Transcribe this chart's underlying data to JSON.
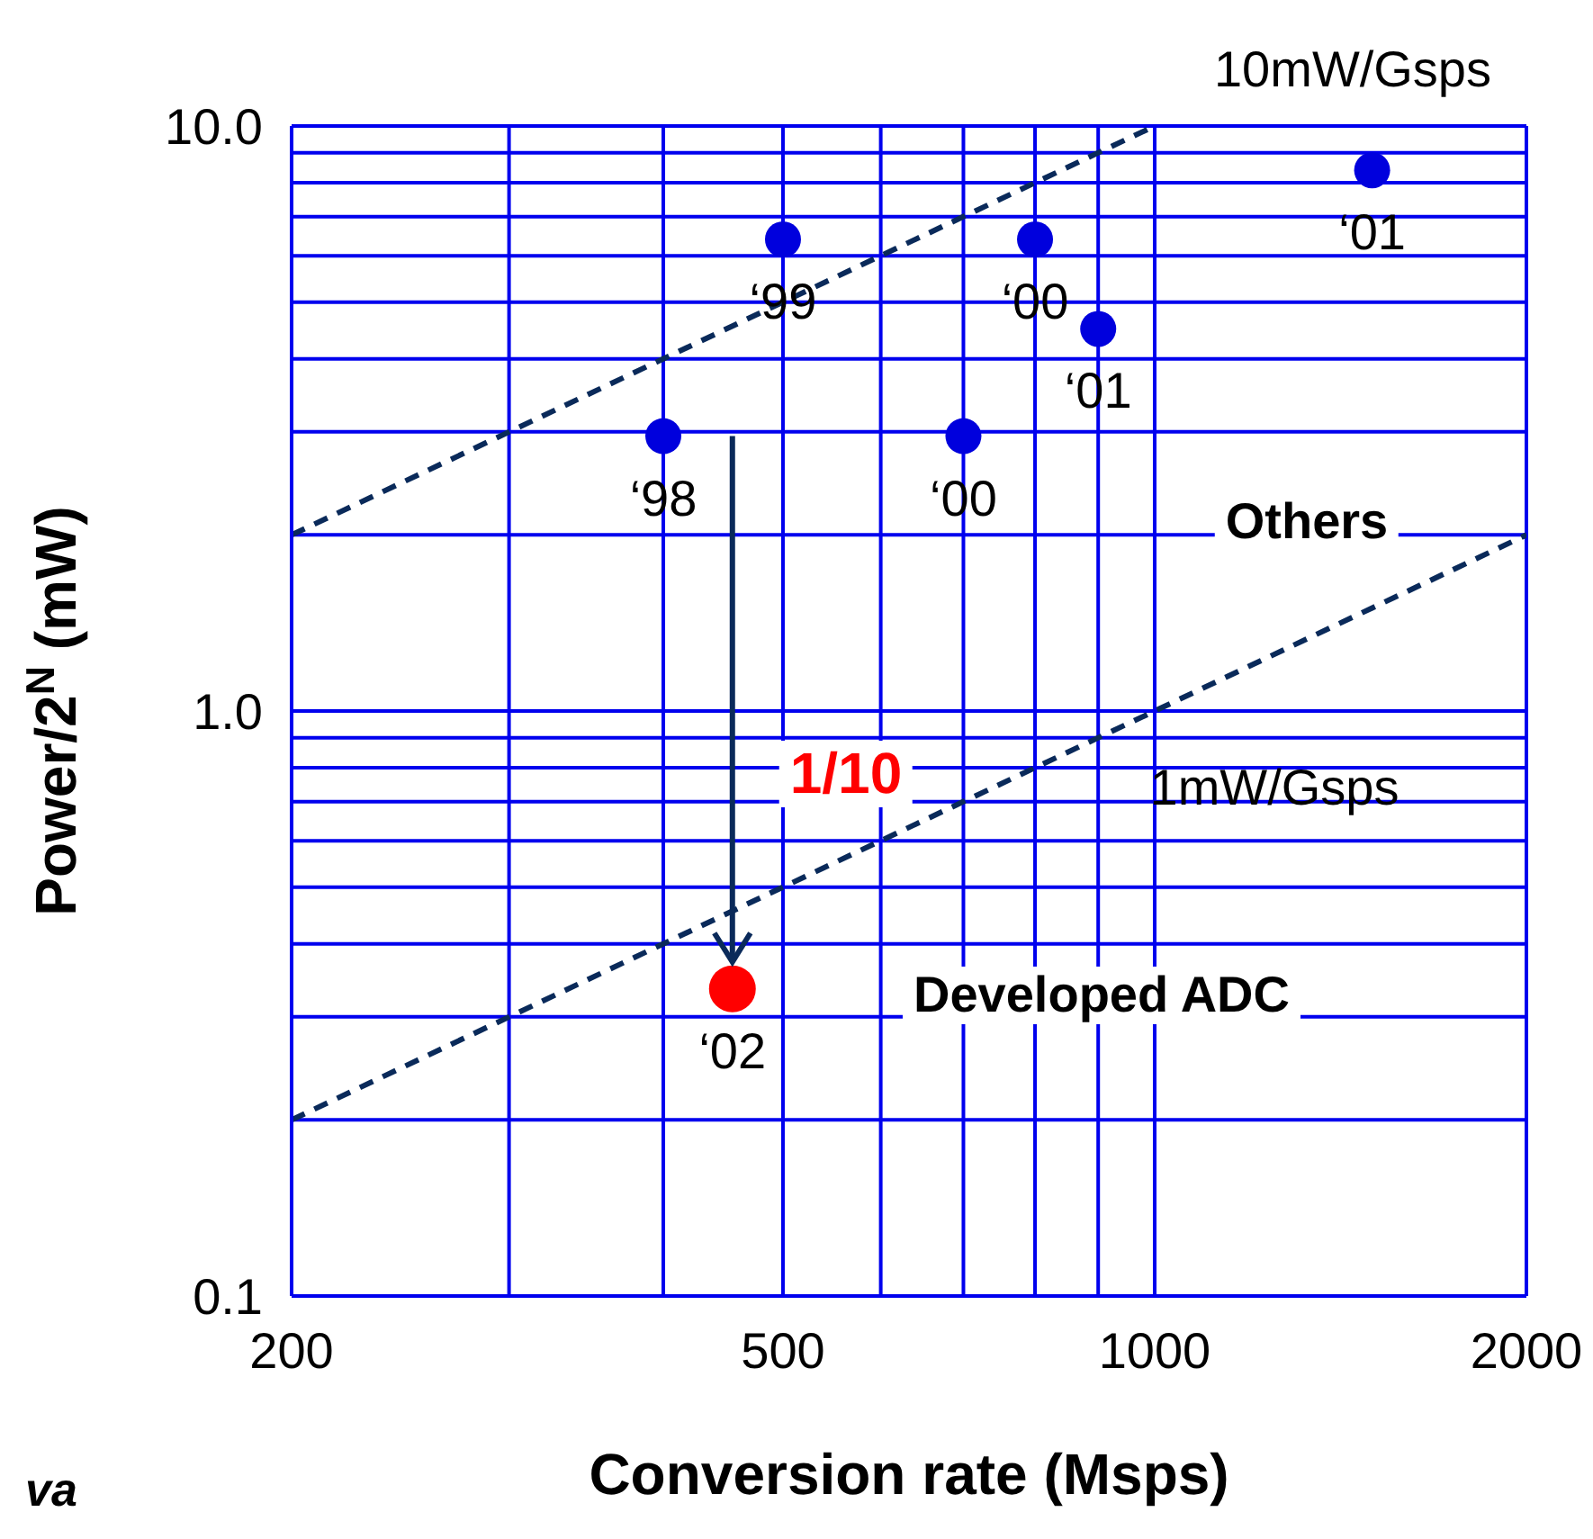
{
  "chart_data": {
    "type": "scatter",
    "xlabel": "Conversion rate (Msps)",
    "ylabel": "Power/2$^{N}$  (mW)",
    "log": "xy",
    "grid": true,
    "marker": "circle",
    "xlim": [
      200,
      2000
    ],
    "ylim": [
      0.1,
      10
    ],
    "xticks": [
      200,
      {
        "value": 300,
        "label": null
      },
      {
        "value": 400,
        "label": null
      },
      500,
      {
        "value": 600,
        "label": null
      },
      {
        "value": 700,
        "label": null
      },
      {
        "value": 800,
        "label": null
      },
      {
        "value": 900,
        "label": null
      },
      1000,
      2000
    ],
    "yticks": [
      {
        "value": 0.1,
        "label": "0.1"
      },
      {
        "value": 0.2,
        "label": null
      },
      {
        "value": 0.3,
        "label": null
      },
      {
        "value": 0.4,
        "label": null
      },
      {
        "value": 0.5,
        "label": null
      },
      {
        "value": 0.6,
        "label": null
      },
      {
        "value": 0.7,
        "label": null
      },
      {
        "value": 0.8,
        "label": null
      },
      {
        "value": 0.9,
        "label": null
      },
      {
        "value": 1,
        "label": "1.0"
      },
      {
        "value": 2,
        "label": null
      },
      {
        "value": 3,
        "label": null
      },
      {
        "value": 4,
        "label": null
      },
      {
        "value": 5,
        "label": null
      },
      {
        "value": 6,
        "label": null
      },
      {
        "value": 7,
        "label": null
      },
      {
        "value": 8,
        "label": null
      },
      {
        "value": 9,
        "label": null
      },
      {
        "value": 10,
        "label": "10.0"
      }
    ],
    "series": [
      {
        "type": "line",
        "name": "10mW/Gsps",
        "color": "#0a2a5a",
        "line_style": "dashed",
        "marker": "none",
        "x": [
          200,
          1000
        ],
        "values": [
          2,
          10
        ]
      },
      {
        "type": "line",
        "name": "1mW/Gsps",
        "color": "#0a2a5a",
        "line_style": "dashed",
        "marker": "none",
        "x": [
          200,
          2000
        ],
        "values": [
          0.2,
          2
        ]
      },
      {
        "color": "#0000dd",
        "x": [
          400,
          500,
          700,
          800,
          900,
          1500
        ],
        "values": [
          2.95,
          6.4,
          2.95,
          6.4,
          4.5,
          8.4
        ]
      },
      {
        "color": "#ff0000",
        "x": [
          455
        ],
        "values": [
          0.335
        ]
      }
    ],
    "annotations": [
      {
        "text": "‘98",
        "x": 400,
        "y": 2.95
      },
      {
        "text": "‘99",
        "x": 500,
        "y": 6.4
      },
      {
        "text": "‘00",
        "x": 700,
        "y": 2.95
      },
      {
        "text": "‘00",
        "x": 800,
        "y": 6.4
      },
      {
        "text": "‘01",
        "x": 900,
        "y": 4.5
      },
      {
        "text": "‘01",
        "x": 1500,
        "y": 8.4
      },
      {
        "text": "‘02",
        "x": 455,
        "y": 0.335
      },
      "Others",
      "1/10",
      "Developed ADC",
      "va"
    ]
  }
}
